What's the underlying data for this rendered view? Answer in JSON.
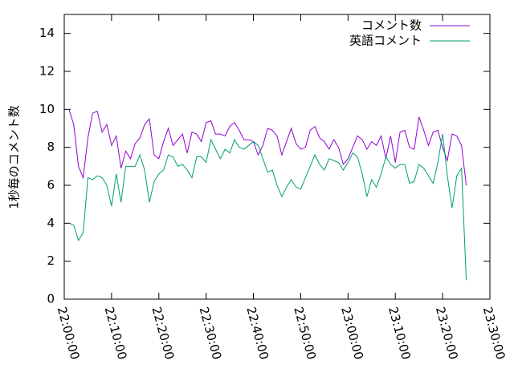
{
  "chart_data": {
    "type": "line",
    "y_label": "1秒毎のコメント数",
    "x": [
      "22:01:00",
      "22:02:00",
      "22:03:00",
      "22:04:00",
      "22:05:00",
      "22:06:00",
      "22:07:00",
      "22:08:00",
      "22:09:00",
      "22:10:00",
      "22:11:00",
      "22:12:00",
      "22:13:00",
      "22:14:00",
      "22:15:00",
      "22:16:00",
      "22:17:00",
      "22:18:00",
      "22:19:00",
      "22:20:00",
      "22:21:00",
      "22:22:00",
      "22:23:00",
      "22:24:00",
      "22:25:00",
      "22:26:00",
      "22:27:00",
      "22:28:00",
      "22:29:00",
      "22:30:00",
      "22:31:00",
      "22:32:00",
      "22:33:00",
      "22:34:00",
      "22:35:00",
      "22:36:00",
      "22:37:00",
      "22:38:00",
      "22:39:00",
      "22:40:00",
      "22:41:00",
      "22:42:00",
      "22:43:00",
      "22:44:00",
      "22:45:00",
      "22:46:00",
      "22:47:00",
      "22:48:00",
      "22:49:00",
      "22:50:00",
      "22:51:00",
      "22:52:00",
      "22:53:00",
      "22:54:00",
      "22:55:00",
      "22:56:00",
      "22:57:00",
      "22:58:00",
      "22:59:00",
      "23:00:00",
      "23:01:00",
      "23:02:00",
      "23:03:00",
      "23:04:00",
      "23:05:00",
      "23:06:00",
      "23:07:00",
      "23:08:00",
      "23:09:00",
      "23:10:00",
      "23:11:00",
      "23:12:00",
      "23:13:00",
      "23:14:00",
      "23:15:00",
      "23:16:00",
      "23:17:00",
      "23:18:00",
      "23:19:00",
      "23:20:00",
      "23:21:00",
      "23:22:00",
      "23:23:00",
      "23:24:00",
      "23:25:00"
    ],
    "series": [
      {
        "name": "コメント数",
        "color": "#9400d3",
        "values": [
          10.0,
          9.2,
          7.0,
          6.4,
          8.5,
          9.8,
          9.9,
          8.8,
          9.2,
          8.1,
          8.6,
          6.9,
          7.8,
          7.4,
          8.2,
          8.5,
          9.2,
          9.5,
          7.6,
          7.4,
          8.3,
          9.0,
          8.1,
          8.4,
          8.7,
          7.7,
          8.8,
          8.7,
          8.3,
          9.3,
          9.4,
          8.7,
          8.7,
          8.6,
          9.1,
          9.3,
          8.9,
          8.4,
          8.4,
          8.3,
          7.6,
          8.1,
          9.0,
          8.9,
          8.6,
          7.6,
          8.3,
          9.0,
          8.2,
          7.9,
          8.0,
          8.9,
          9.1,
          8.5,
          8.3,
          7.9,
          8.4,
          8.0,
          7.1,
          7.4,
          8.0,
          8.6,
          8.4,
          7.9,
          8.3,
          8.1,
          8.6,
          7.4,
          8.6,
          7.2,
          8.8,
          8.9,
          8.0,
          7.9,
          9.6,
          8.9,
          8.1,
          8.8,
          8.9,
          8.0,
          7.3,
          8.7,
          8.6,
          8.1,
          6.0
        ]
      },
      {
        "name": "英語コメント",
        "color": "#009e73",
        "values": [
          4.0,
          3.9,
          3.1,
          3.5,
          6.4,
          6.3,
          6.5,
          6.4,
          6.0,
          4.9,
          6.6,
          5.1,
          7.0,
          7.0,
          7.0,
          7.6,
          6.8,
          5.1,
          6.2,
          6.6,
          6.8,
          7.6,
          7.5,
          7.0,
          7.1,
          6.8,
          6.4,
          7.5,
          7.5,
          7.2,
          8.4,
          7.9,
          7.4,
          7.9,
          7.7,
          8.4,
          8.0,
          7.9,
          8.1,
          8.3,
          8.1,
          7.4,
          6.7,
          6.8,
          6.0,
          5.4,
          5.9,
          6.3,
          5.9,
          5.8,
          6.4,
          7.0,
          7.6,
          7.1,
          6.8,
          7.4,
          7.3,
          7.2,
          6.8,
          7.2,
          7.7,
          7.5,
          6.6,
          5.4,
          6.3,
          5.9,
          6.6,
          7.5,
          7.1,
          6.9,
          7.1,
          7.1,
          6.1,
          6.2,
          7.1,
          6.9,
          6.5,
          6.1,
          7.2,
          8.7,
          6.5,
          4.8,
          6.5,
          6.9,
          1.0
        ]
      }
    ],
    "xlim": [
      "22:00:00",
      "23:30:00"
    ],
    "xticks": [
      "22:00:00",
      "22:10:00",
      "22:20:00",
      "22:30:00",
      "22:40:00",
      "22:50:00",
      "23:00:00",
      "23:10:00",
      "23:20:00",
      "23:30:00"
    ],
    "ylim": [
      0,
      15
    ],
    "yticks": [
      0,
      2,
      4,
      6,
      8,
      10,
      12,
      14
    ],
    "legend": "top right"
  }
}
